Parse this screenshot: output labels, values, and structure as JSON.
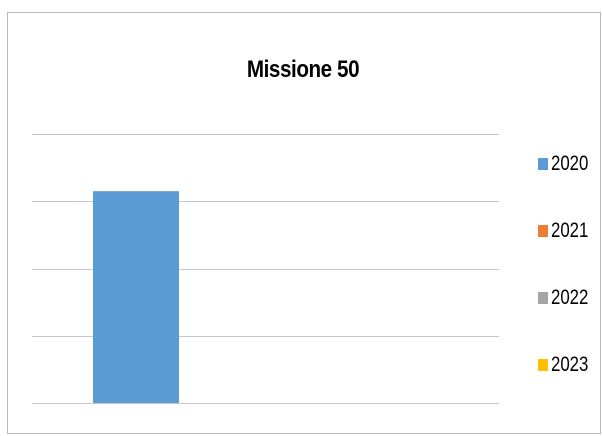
{
  "chart_data": {
    "type": "bar",
    "title": "Missione 50",
    "categories": [
      ""
    ],
    "series": [
      {
        "name": "2020",
        "color": "#5b9bd5",
        "values": [
          3.15
        ]
      },
      {
        "name": "2021",
        "color": "#ed7d31",
        "values": [
          0
        ]
      },
      {
        "name": "2022",
        "color": "#a5a5a5",
        "values": [
          0
        ]
      },
      {
        "name": "2023",
        "color": "#ffc000",
        "values": [
          0
        ]
      }
    ],
    "ylim": [
      0,
      4
    ],
    "grid": true,
    "legend_position": "right"
  }
}
